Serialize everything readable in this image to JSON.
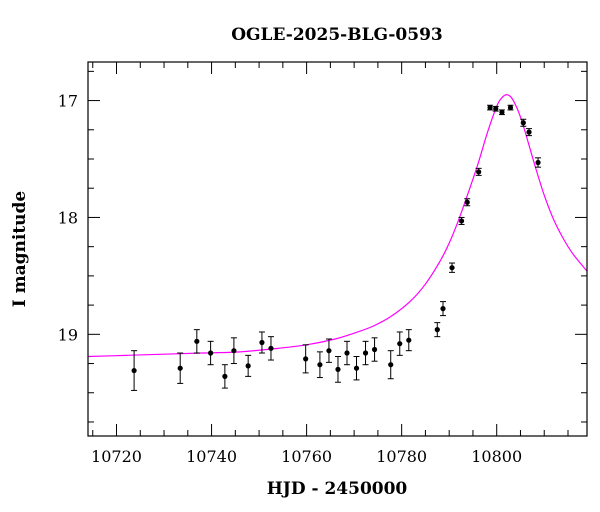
{
  "chart_data": {
    "type": "scatter",
    "title": "OGLE-2025-BLG-0593",
    "xlabel": "HJD - 2450000",
    "ylabel": "I magnitude",
    "xlim": [
      10714,
      10819
    ],
    "ylim": [
      19.87,
      16.67
    ],
    "y_inverted": true,
    "x_major_ticks": [
      10720,
      10740,
      10760,
      10780,
      10800
    ],
    "x_tick_labels": [
      "10720",
      "10740",
      "10760",
      "10780",
      "10800"
    ],
    "y_major_ticks": [
      17,
      18,
      19
    ],
    "y_tick_labels": [
      "17",
      "18",
      "19"
    ],
    "x_minor_step": 5,
    "y_minor_step": 0.25,
    "grid": false,
    "colors": {
      "data": "#000000",
      "model": "#ff00ff",
      "frame": "#000000"
    },
    "series": [
      {
        "kind": "points_with_errorbars",
        "x": [
          10723.7,
          10733.4,
          10736.9,
          10739.8,
          10742.8,
          10744.7,
          10747.7,
          10750.6,
          10752.5,
          10759.8,
          10762.8,
          10764.7,
          10766.6,
          10768.5,
          10770.5,
          10772.4,
          10774.3,
          10777.7,
          10779.6,
          10781.5,
          10787.5,
          10788.7,
          10790.6,
          10792.6,
          10793.8,
          10796.2,
          10798.6,
          10799.8,
          10801.1,
          10802.9,
          10805.6,
          10806.8,
          10808.7
        ],
        "y": [
          19.31,
          19.29,
          19.06,
          19.16,
          19.36,
          19.14,
          19.27,
          19.07,
          19.12,
          19.21,
          19.26,
          19.14,
          19.3,
          19.16,
          19.29,
          19.16,
          19.13,
          19.26,
          19.08,
          19.05,
          18.96,
          18.78,
          18.43,
          18.03,
          17.87,
          17.61,
          17.06,
          17.07,
          17.1,
          17.06,
          17.19,
          17.27,
          17.53
        ],
        "yerr": [
          0.17,
          0.13,
          0.1,
          0.1,
          0.1,
          0.11,
          0.09,
          0.09,
          0.1,
          0.12,
          0.11,
          0.1,
          0.11,
          0.1,
          0.1,
          0.1,
          0.1,
          0.12,
          0.1,
          0.09,
          0.06,
          0.06,
          0.04,
          0.03,
          0.03,
          0.03,
          0.02,
          0.02,
          0.02,
          0.02,
          0.03,
          0.03,
          0.04
        ]
      },
      {
        "kind": "model_curve",
        "x": [
          10714,
          10722,
          10730,
          10738,
          10746,
          10754,
          10760,
          10766,
          10770,
          10774,
          10778,
          10782,
          10785,
          10788,
          10790,
          10792,
          10794,
          10796,
          10798,
          10800,
          10801,
          10802,
          10803,
          10804,
          10805,
          10806,
          10808,
          10810,
          10812,
          10814,
          10816,
          10819
        ],
        "y": [
          19.19,
          19.18,
          19.17,
          19.16,
          19.15,
          19.12,
          19.09,
          19.04,
          18.99,
          18.93,
          18.84,
          18.71,
          18.57,
          18.38,
          18.22,
          18.02,
          17.79,
          17.55,
          17.28,
          17.05,
          16.98,
          16.95,
          16.97,
          17.04,
          17.14,
          17.27,
          17.55,
          17.81,
          18.02,
          18.18,
          18.31,
          18.46
        ]
      }
    ]
  }
}
